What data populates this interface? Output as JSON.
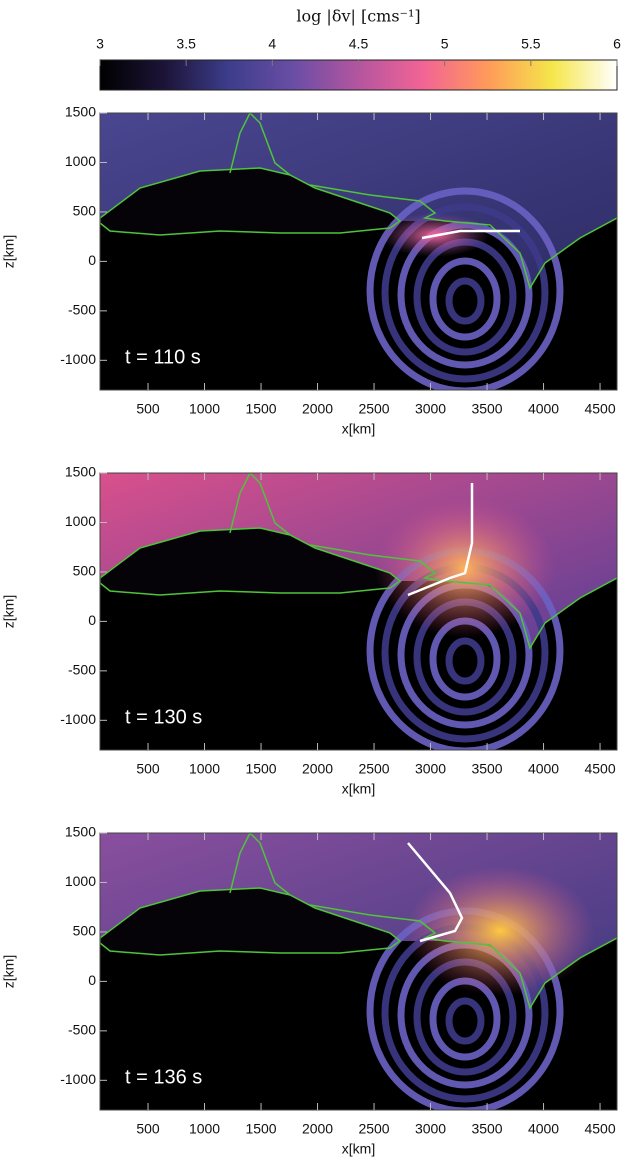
{
  "chart_data": [
    {
      "type": "colorbar",
      "label": "log |δv|   [cms⁻¹]",
      "xlim": [
        3,
        6
      ],
      "xticks": [
        3,
        3.5,
        4,
        4.5,
        5,
        5.5,
        6
      ],
      "colors": [
        "#000000",
        "#1c1438",
        "#3d3d8c",
        "#6a4ea6",
        "#b4559f",
        "#f26495",
        "#ff9a5a",
        "#f5e64a",
        "#ffffff"
      ]
    },
    {
      "type": "heatmap",
      "annotation": "t = 110 s",
      "xlabel": "x[km]",
      "ylabel": "z[km]",
      "xlim": [
        75,
        4650
      ],
      "ylim": [
        -1300,
        1500
      ],
      "xticks": [
        500,
        1000,
        1500,
        2000,
        2500,
        3000,
        3500,
        4000,
        4500
      ],
      "yticks": [
        -1000,
        -500,
        0,
        500,
        1000,
        1500
      ]
    },
    {
      "type": "heatmap",
      "annotation": "t = 130 s",
      "xlabel": "x[km]",
      "ylabel": "z[km]",
      "xlim": [
        75,
        4650
      ],
      "ylim": [
        -1300,
        1500
      ],
      "xticks": [
        500,
        1000,
        1500,
        2000,
        2500,
        3000,
        3500,
        4000,
        4500
      ],
      "yticks": [
        -1000,
        -500,
        0,
        500,
        1000,
        1500
      ]
    },
    {
      "type": "heatmap",
      "annotation": "t = 136 s",
      "xlabel": "x[km]",
      "ylabel": "z[km]",
      "xlim": [
        75,
        4650
      ],
      "ylim": [
        -1300,
        1500
      ],
      "xticks": [
        500,
        1000,
        1500,
        2000,
        2500,
        3000,
        3500,
        4000,
        4500
      ],
      "yticks": [
        -1000,
        -500,
        0,
        500,
        1000,
        1500
      ]
    }
  ]
}
